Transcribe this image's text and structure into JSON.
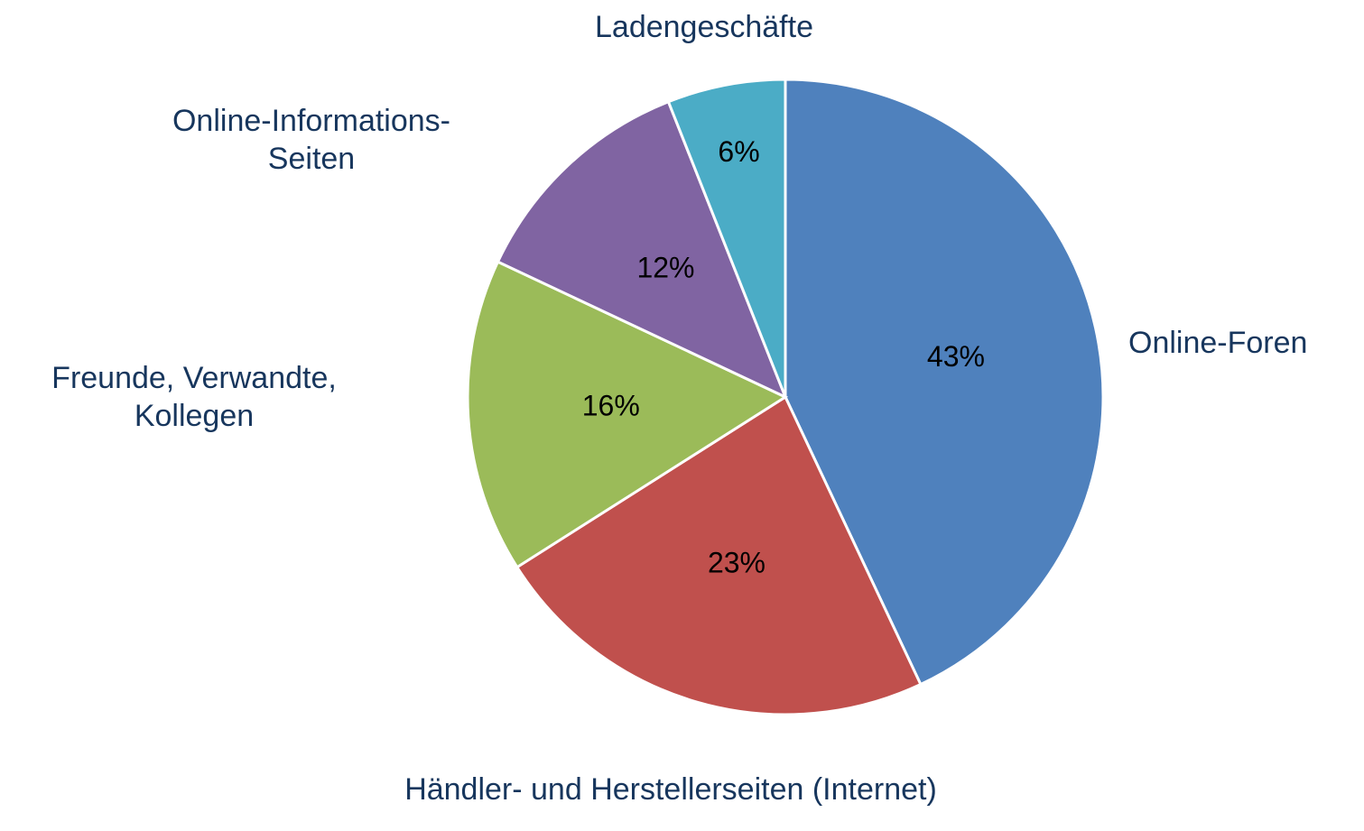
{
  "chart_data": {
    "type": "pie",
    "categories": [
      "Online-Foren",
      "Händler- und Herstellerseiten (Internet)",
      "Freunde, Verwandte, Kollegen",
      "Online-Informations-Seiten",
      "Ladengeschäfte"
    ],
    "values": [
      43,
      23,
      16,
      12,
      6
    ],
    "value_labels": [
      "43%",
      "23%",
      "16%",
      "12%",
      "6%"
    ],
    "colors": [
      "#4f81bd",
      "#c0504d",
      "#9bbb59",
      "#8064a2",
      "#4bacc6"
    ]
  }
}
